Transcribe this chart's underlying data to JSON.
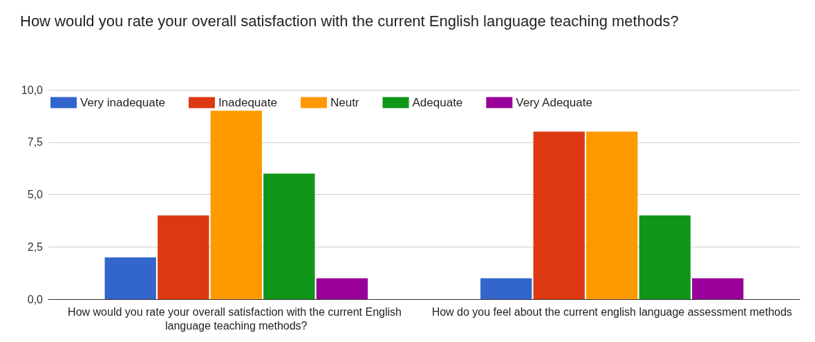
{
  "chart_data": {
    "type": "bar",
    "title": "How would you rate your overall satisfaction with the current English language teaching methods?",
    "categories": [
      "How would you rate your overall satisfaction with the current English language teaching methods?",
      "How do you feel about the current english language assessment methods"
    ],
    "series": [
      {
        "name": "Very inadequate",
        "color": "#3366cc",
        "values": [
          2,
          1
        ]
      },
      {
        "name": "Inadequate",
        "color": "#dc3912",
        "values": [
          4,
          8
        ]
      },
      {
        "name": "Neutr",
        "color": "#ff9900",
        "values": [
          9,
          8
        ]
      },
      {
        "name": "Adequate",
        "color": "#109618",
        "values": [
          6,
          4
        ]
      },
      {
        "name": "Very Adequate",
        "color": "#990099",
        "values": [
          1,
          1
        ]
      }
    ],
    "ylim": [
      0,
      10
    ],
    "yticks": [
      {
        "value": 0,
        "label": "0,0"
      },
      {
        "value": 2.5,
        "label": "2,5"
      },
      {
        "value": 5,
        "label": "5,0"
      },
      {
        "value": 7.5,
        "label": "7,5"
      },
      {
        "value": 10,
        "label": "10,0"
      }
    ],
    "grid": "y",
    "legend": "top left"
  }
}
